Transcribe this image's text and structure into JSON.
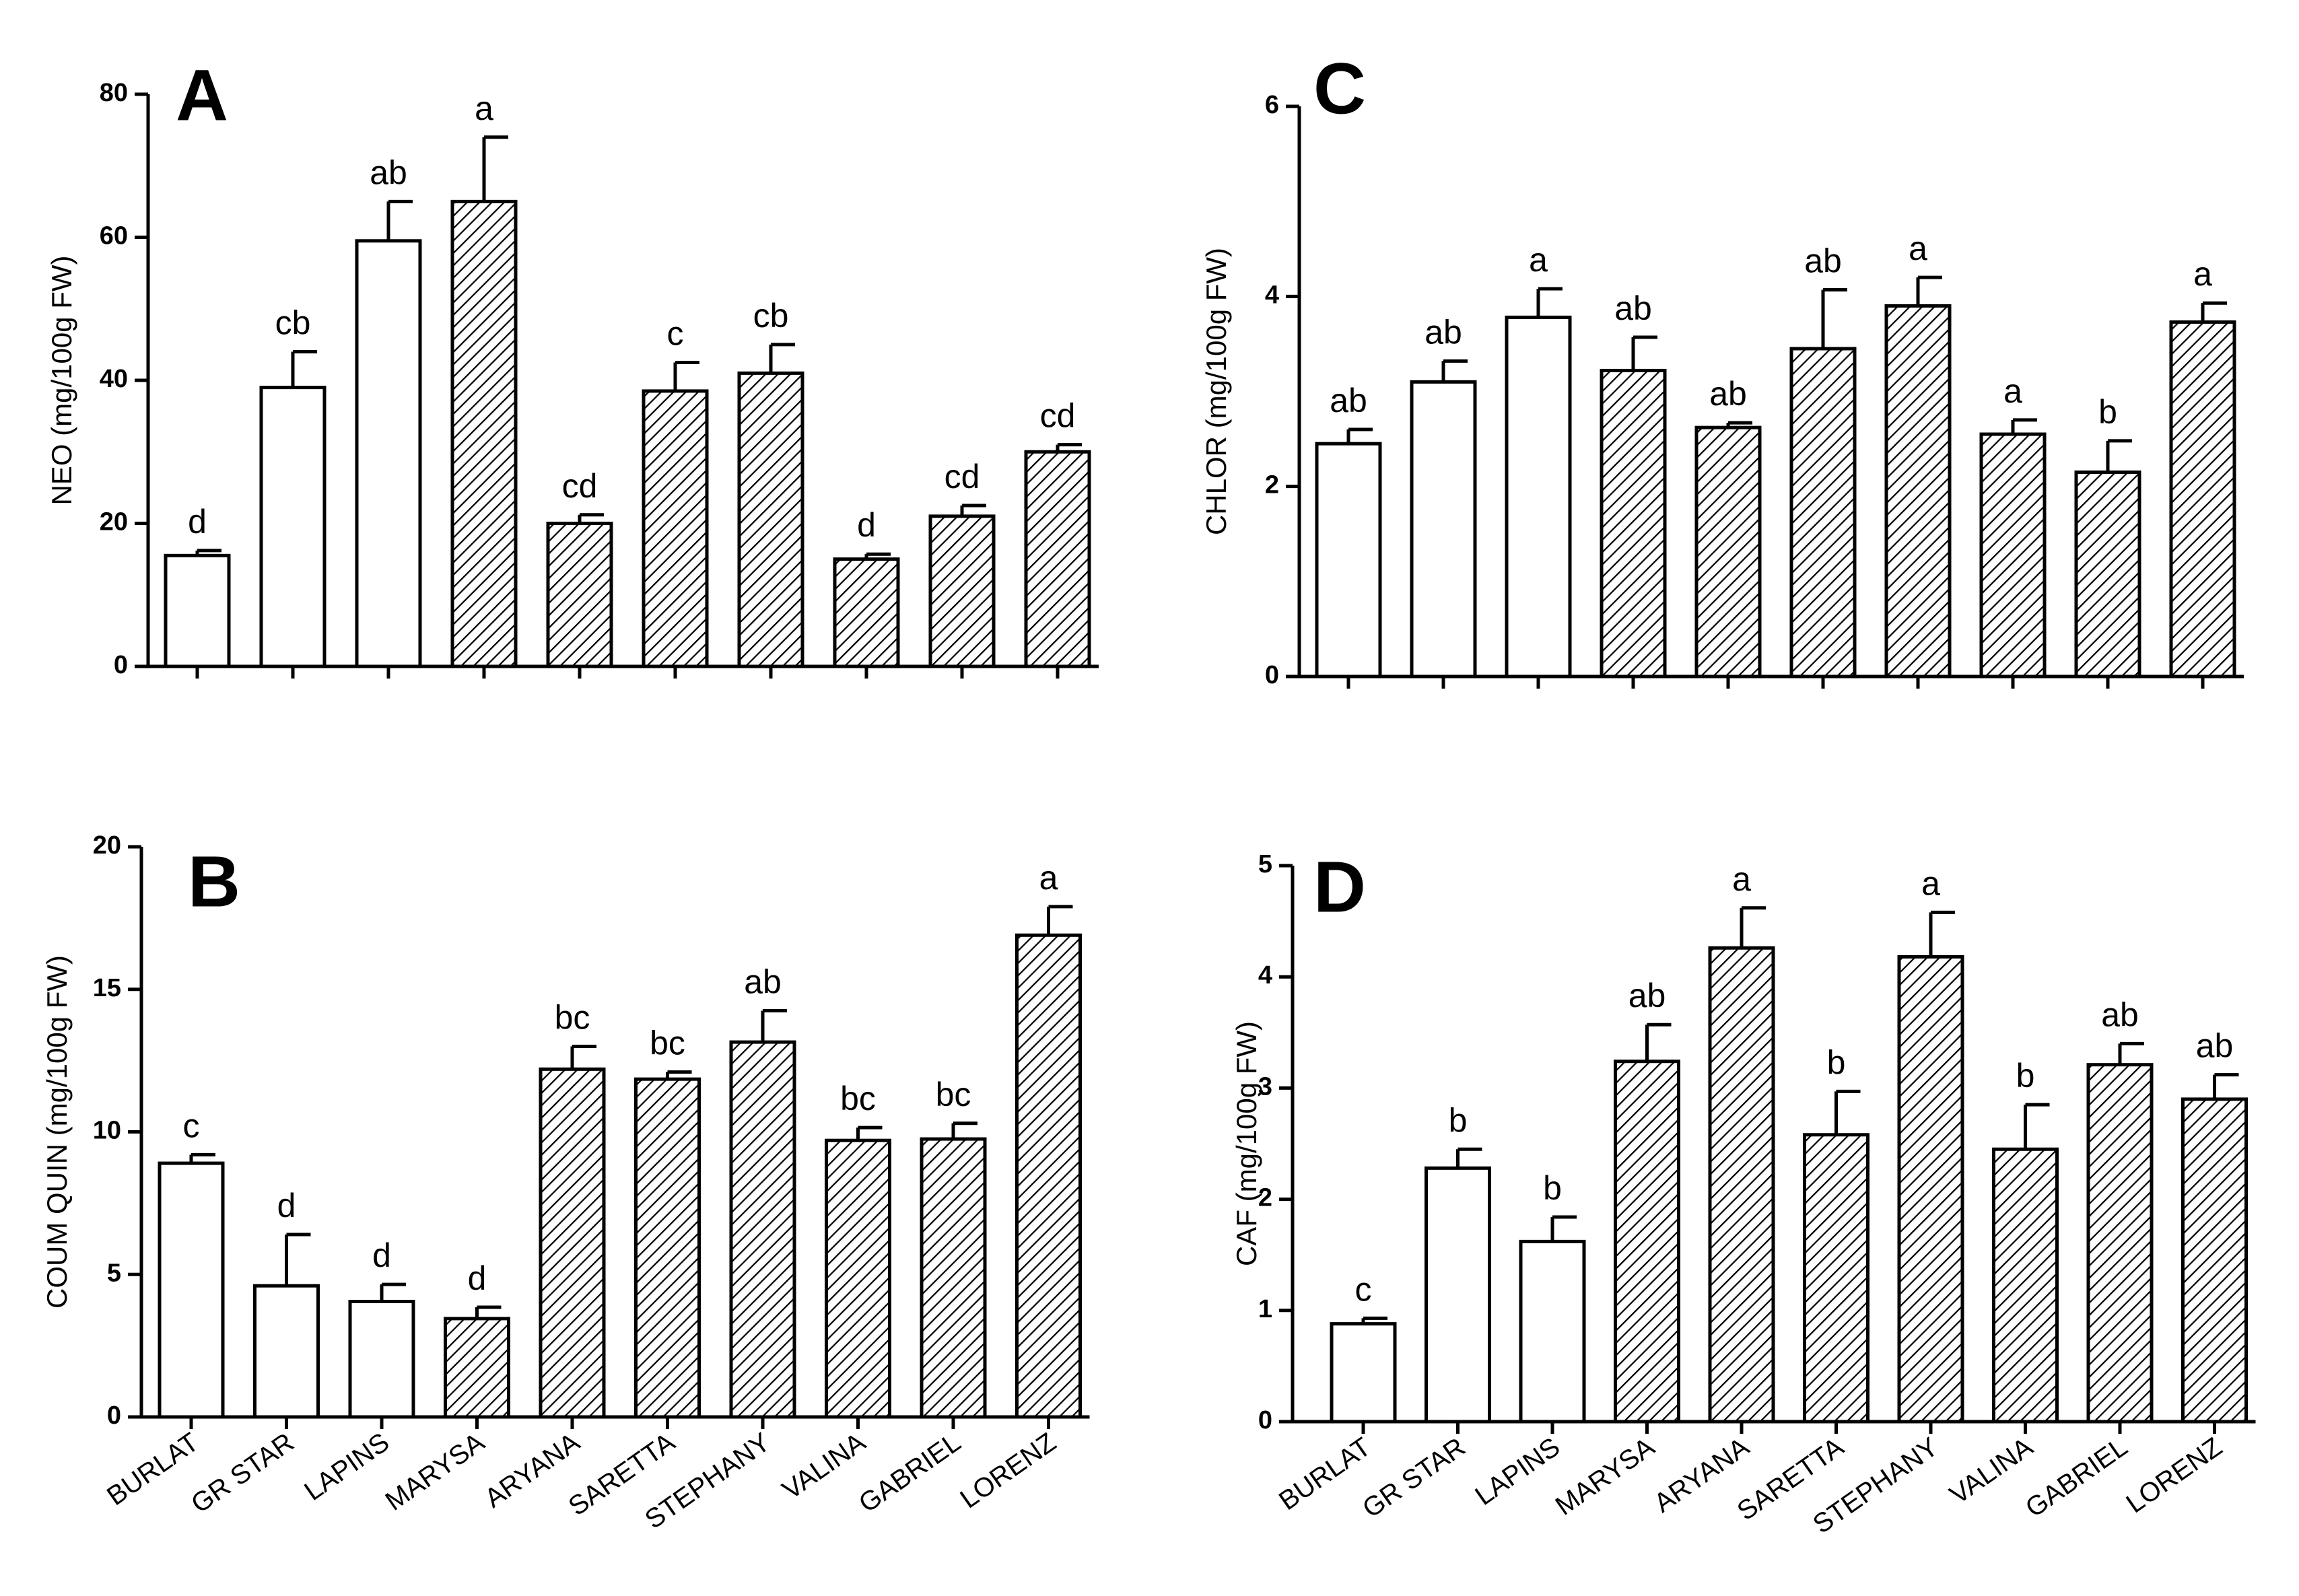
{
  "figure": {
    "panel_order": [
      "A",
      "C",
      "B",
      "D"
    ]
  },
  "chart_data": [
    {
      "panel": "A",
      "type": "bar",
      "title": "",
      "xlabel": "",
      "ylabel": "NEO (mg/100g FW)",
      "ylim": [
        0,
        80
      ],
      "yticks": [
        0,
        20,
        40,
        60,
        80
      ],
      "categories": [
        "BURLAT",
        "GR STAR",
        "LAPINS",
        "MARYSA",
        "ARYANA",
        "SARETTA",
        "STEPHANY",
        "VALINA",
        "GABRIEL",
        "LORENZ"
      ],
      "show_x_tick_labels": false,
      "values": [
        15.5,
        39,
        59.5,
        65,
        20,
        38.5,
        41,
        15,
        21,
        30
      ],
      "errors": [
        0.7,
        5,
        5.5,
        9,
        1.2,
        4,
        4,
        0.7,
        1.5,
        1
      ],
      "fill": [
        "open",
        "open",
        "open",
        "hatched",
        "hatched",
        "hatched",
        "hatched",
        "hatched",
        "hatched",
        "hatched"
      ],
      "significance": [
        "d",
        "cb",
        "ab",
        "a",
        "cd",
        "c",
        "cb",
        "d",
        "cd",
        "cd"
      ]
    },
    {
      "panel": "C",
      "type": "bar",
      "title": "",
      "xlabel": "",
      "ylabel": "CHLOR (mg/100g FW)",
      "ylim": [
        0,
        6
      ],
      "yticks": [
        0,
        2,
        4,
        6
      ],
      "categories": [
        "BURLAT",
        "GR STAR",
        "LAPINS",
        "MARYSA",
        "ARYANA",
        "SARETTA",
        "STEPHANY",
        "VALINA",
        "GABRIEL",
        "LORENZ"
      ],
      "show_x_tick_labels": false,
      "values": [
        2.45,
        3.1,
        3.78,
        3.22,
        2.62,
        3.45,
        3.9,
        2.55,
        2.15,
        3.73
      ],
      "errors": [
        0.15,
        0.22,
        0.3,
        0.35,
        0.05,
        0.62,
        0.3,
        0.15,
        0.33,
        0.2
      ],
      "fill": [
        "open",
        "open",
        "open",
        "hatched",
        "hatched",
        "hatched",
        "hatched",
        "hatched",
        "hatched",
        "hatched"
      ],
      "significance": [
        "ab",
        "ab",
        "a",
        "ab",
        "ab",
        "ab",
        "a",
        "a",
        "b",
        "a"
      ]
    },
    {
      "panel": "B",
      "type": "bar",
      "title": "",
      "xlabel": "",
      "ylabel": "COUM QUIN (mg/100g FW)",
      "ylim": [
        0,
        20
      ],
      "yticks": [
        0,
        5,
        10,
        15,
        20
      ],
      "categories": [
        "BURLAT",
        "GR STAR",
        "LAPINS",
        "MARYSA",
        "ARYANA",
        "SARETTA",
        "STEPHANY",
        "VALINA",
        "GABRIEL",
        "LORENZ"
      ],
      "show_x_tick_labels": true,
      "values": [
        8.9,
        4.6,
        4.05,
        3.45,
        12.2,
        11.85,
        13.15,
        9.7,
        9.75,
        16.9
      ],
      "errors": [
        0.3,
        1.8,
        0.6,
        0.4,
        0.8,
        0.25,
        1.1,
        0.45,
        0.55,
        1
      ],
      "fill": [
        "open",
        "open",
        "open",
        "hatched",
        "hatched",
        "hatched",
        "hatched",
        "hatched",
        "hatched",
        "hatched"
      ],
      "significance": [
        "c",
        "d",
        "d",
        "d",
        "bc",
        "bc",
        "ab",
        "bc",
        "bc",
        "a"
      ]
    },
    {
      "panel": "D",
      "type": "bar",
      "title": "",
      "xlabel": "",
      "ylabel": "CAF (mg/100g FW)",
      "ylim": [
        0,
        5
      ],
      "yticks": [
        0,
        1,
        2,
        3,
        4,
        5
      ],
      "categories": [
        "BURLAT",
        "GR STAR",
        "LAPINS",
        "MARYSA",
        "ARYANA",
        "SARETTA",
        "STEPHANY",
        "VALINA",
        "GABRIEL",
        "LORENZ"
      ],
      "show_x_tick_labels": true,
      "values": [
        0.88,
        2.28,
        1.62,
        3.24,
        4.26,
        2.58,
        4.18,
        2.45,
        3.21,
        2.9
      ],
      "errors": [
        0.05,
        0.17,
        0.22,
        0.33,
        0.36,
        0.39,
        0.4,
        0.4,
        0.19,
        0.22
      ],
      "fill": [
        "open",
        "open",
        "open",
        "hatched",
        "hatched",
        "hatched",
        "hatched",
        "hatched",
        "hatched",
        "hatched"
      ],
      "significance": [
        "c",
        "b",
        "b",
        "ab",
        "a",
        "b",
        "a",
        "b",
        "ab",
        "ab"
      ]
    }
  ]
}
